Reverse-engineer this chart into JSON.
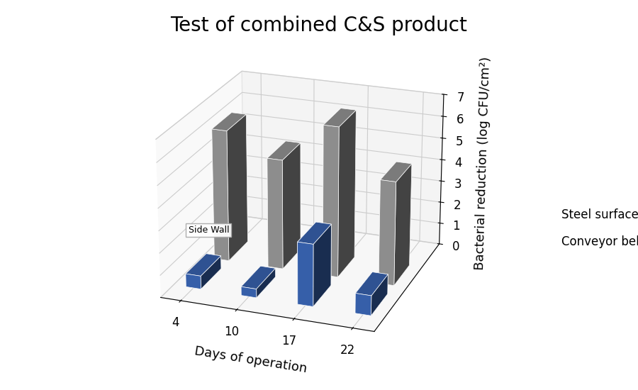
{
  "title": "Test of combined C&S product",
  "xlabel": "Days of operation",
  "ylabel": "Bacterial reduction (log CFU/cm²)",
  "days": [
    4,
    10,
    17,
    22
  ],
  "steel_surface": [
    6.0,
    5.0,
    6.8,
    4.7
  ],
  "conveyor_belt": [
    0.6,
    0.4,
    2.8,
    0.9
  ],
  "steel_color": "#a0a0a0",
  "belt_color": "#3d6bbf",
  "ylim": [
    0,
    7
  ],
  "yticks": [
    0,
    1,
    2,
    3,
    4,
    5,
    6,
    7
  ],
  "title_fontsize": 20,
  "axis_label_fontsize": 13,
  "tick_fontsize": 12,
  "annotation_text": "Side Wall",
  "legend_labels": [
    "Steel surface",
    "Conveyor belt"
  ],
  "background_color": "#ffffff",
  "elev": 22,
  "azim": -70
}
